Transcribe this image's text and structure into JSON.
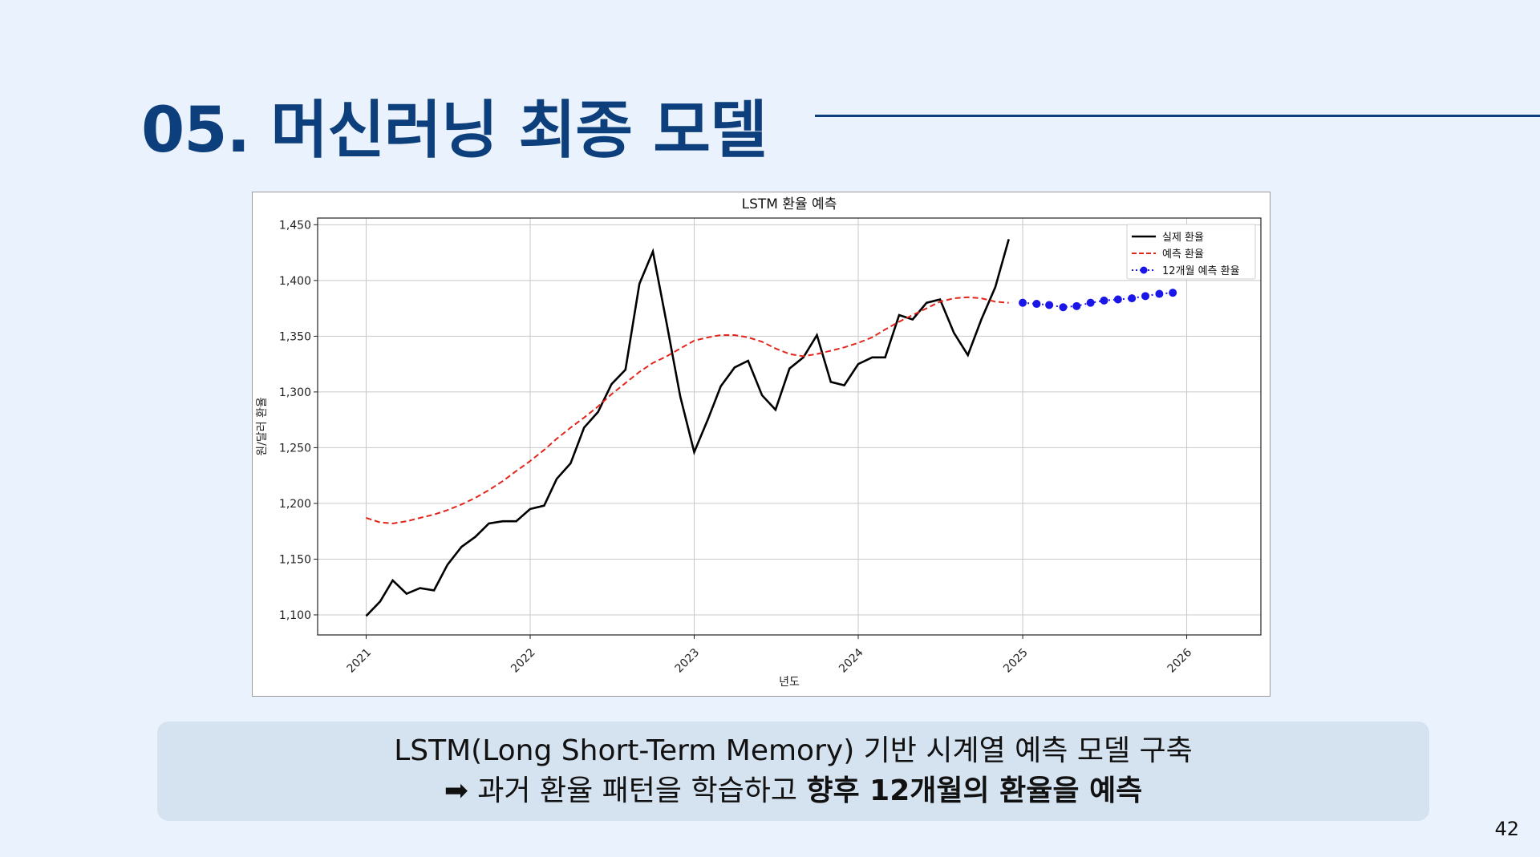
{
  "slide": {
    "title": "05.  머신러닝 최종 모델",
    "page_number": "42",
    "caption_line1": "LSTM(Long Short-Term Memory) 기반 시계열 예측 모델 구축",
    "caption_line2_arrow": "➡",
    "caption_line2_plain": " 과거 환율 패턴을 학습하고 ",
    "caption_line2_bold": "향후 12개월의 환율을 예측",
    "colors": {
      "title": "#0d3f7c",
      "caption_bg": "#d5e2f0",
      "background": "#eaf3fd"
    }
  },
  "chart_data": {
    "type": "line",
    "title": "LSTM 환율 예측",
    "xlabel": "년도",
    "ylabel": "원/달러 환율",
    "xlim": [
      "2020-09-15",
      "2026-06-15"
    ],
    "ylim": [
      1082,
      1456
    ],
    "x_ticks": [
      "2021",
      "2022",
      "2023",
      "2024",
      "2025",
      "2026"
    ],
    "y_ticks": [
      "1,100",
      "1,150",
      "1,200",
      "1,250",
      "1,300",
      "1,350",
      "1,400",
      "1,450"
    ],
    "y_tick_values": [
      1100,
      1150,
      1200,
      1250,
      1300,
      1350,
      1400,
      1450
    ],
    "grid": true,
    "legend_position": "top-right",
    "series": [
      {
        "name": "실제 환율",
        "color": "#000000",
        "style": "solid",
        "x": [
          "2021-01",
          "2021-02",
          "2021-03",
          "2021-04",
          "2021-05",
          "2021-06",
          "2021-07",
          "2021-08",
          "2021-09",
          "2021-10",
          "2021-11",
          "2021-12",
          "2022-01",
          "2022-02",
          "2022-03",
          "2022-04",
          "2022-05",
          "2022-06",
          "2022-07",
          "2022-08",
          "2022-09",
          "2022-10",
          "2022-11",
          "2022-12",
          "2023-01",
          "2023-02",
          "2023-03",
          "2023-04",
          "2023-05",
          "2023-06",
          "2023-07",
          "2023-08",
          "2023-09",
          "2023-10",
          "2023-11",
          "2023-12",
          "2024-01",
          "2024-02",
          "2024-03",
          "2024-04",
          "2024-05",
          "2024-06",
          "2024-07",
          "2024-08",
          "2024-09",
          "2024-10",
          "2024-11",
          "2024-12"
        ],
        "values": [
          1099,
          1112,
          1131,
          1119,
          1124,
          1122,
          1145,
          1161,
          1170,
          1182,
          1184,
          1184,
          1195,
          1198,
          1222,
          1236,
          1268,
          1282,
          1307,
          1320,
          1397,
          1426,
          1361,
          1296,
          1246,
          1276,
          1305,
          1322,
          1328,
          1297,
          1284,
          1321,
          1331,
          1351,
          1309,
          1306,
          1325,
          1331,
          1331,
          1369,
          1365,
          1380,
          1383,
          1353,
          1333,
          1365,
          1394,
          1437
        ]
      },
      {
        "name": "예측 환율",
        "color": "#e3241b",
        "style": "dashed",
        "x": [
          "2021-01",
          "2021-02",
          "2021-03",
          "2021-04",
          "2021-05",
          "2021-06",
          "2021-07",
          "2021-08",
          "2021-09",
          "2021-10",
          "2021-11",
          "2021-12",
          "2022-01",
          "2022-02",
          "2022-03",
          "2022-04",
          "2022-05",
          "2022-06",
          "2022-07",
          "2022-08",
          "2022-09",
          "2022-10",
          "2022-11",
          "2022-12",
          "2023-01",
          "2023-02",
          "2023-03",
          "2023-04",
          "2023-05",
          "2023-06",
          "2023-07",
          "2023-08",
          "2023-09",
          "2023-10",
          "2023-11",
          "2023-12",
          "2024-01",
          "2024-02",
          "2024-03",
          "2024-04",
          "2024-05",
          "2024-06",
          "2024-07",
          "2024-08",
          "2024-09",
          "2024-10",
          "2024-11",
          "2024-12"
        ],
        "values": [
          1187,
          1183,
          1182,
          1184,
          1187,
          1190,
          1194,
          1199,
          1205,
          1212,
          1220,
          1229,
          1238,
          1248,
          1258,
          1268,
          1277,
          1287,
          1298,
          1308,
          1318,
          1326,
          1332,
          1339,
          1346,
          1349,
          1351,
          1351,
          1349,
          1345,
          1339,
          1334,
          1332,
          1334,
          1337,
          1340,
          1344,
          1349,
          1356,
          1363,
          1369,
          1375,
          1381,
          1384,
          1385,
          1384,
          1381,
          1380
        ]
      },
      {
        "name": "12개월 예측 환율",
        "color": "#1a16e8",
        "style": "dotted-markers",
        "x": [
          "2025-01",
          "2025-02",
          "2025-03",
          "2025-04",
          "2025-05",
          "2025-06",
          "2025-07",
          "2025-08",
          "2025-09",
          "2025-10",
          "2025-11",
          "2025-12"
        ],
        "values": [
          1380,
          1379,
          1378,
          1376,
          1377,
          1380,
          1382,
          1383,
          1384,
          1386,
          1388,
          1389
        ]
      }
    ]
  }
}
